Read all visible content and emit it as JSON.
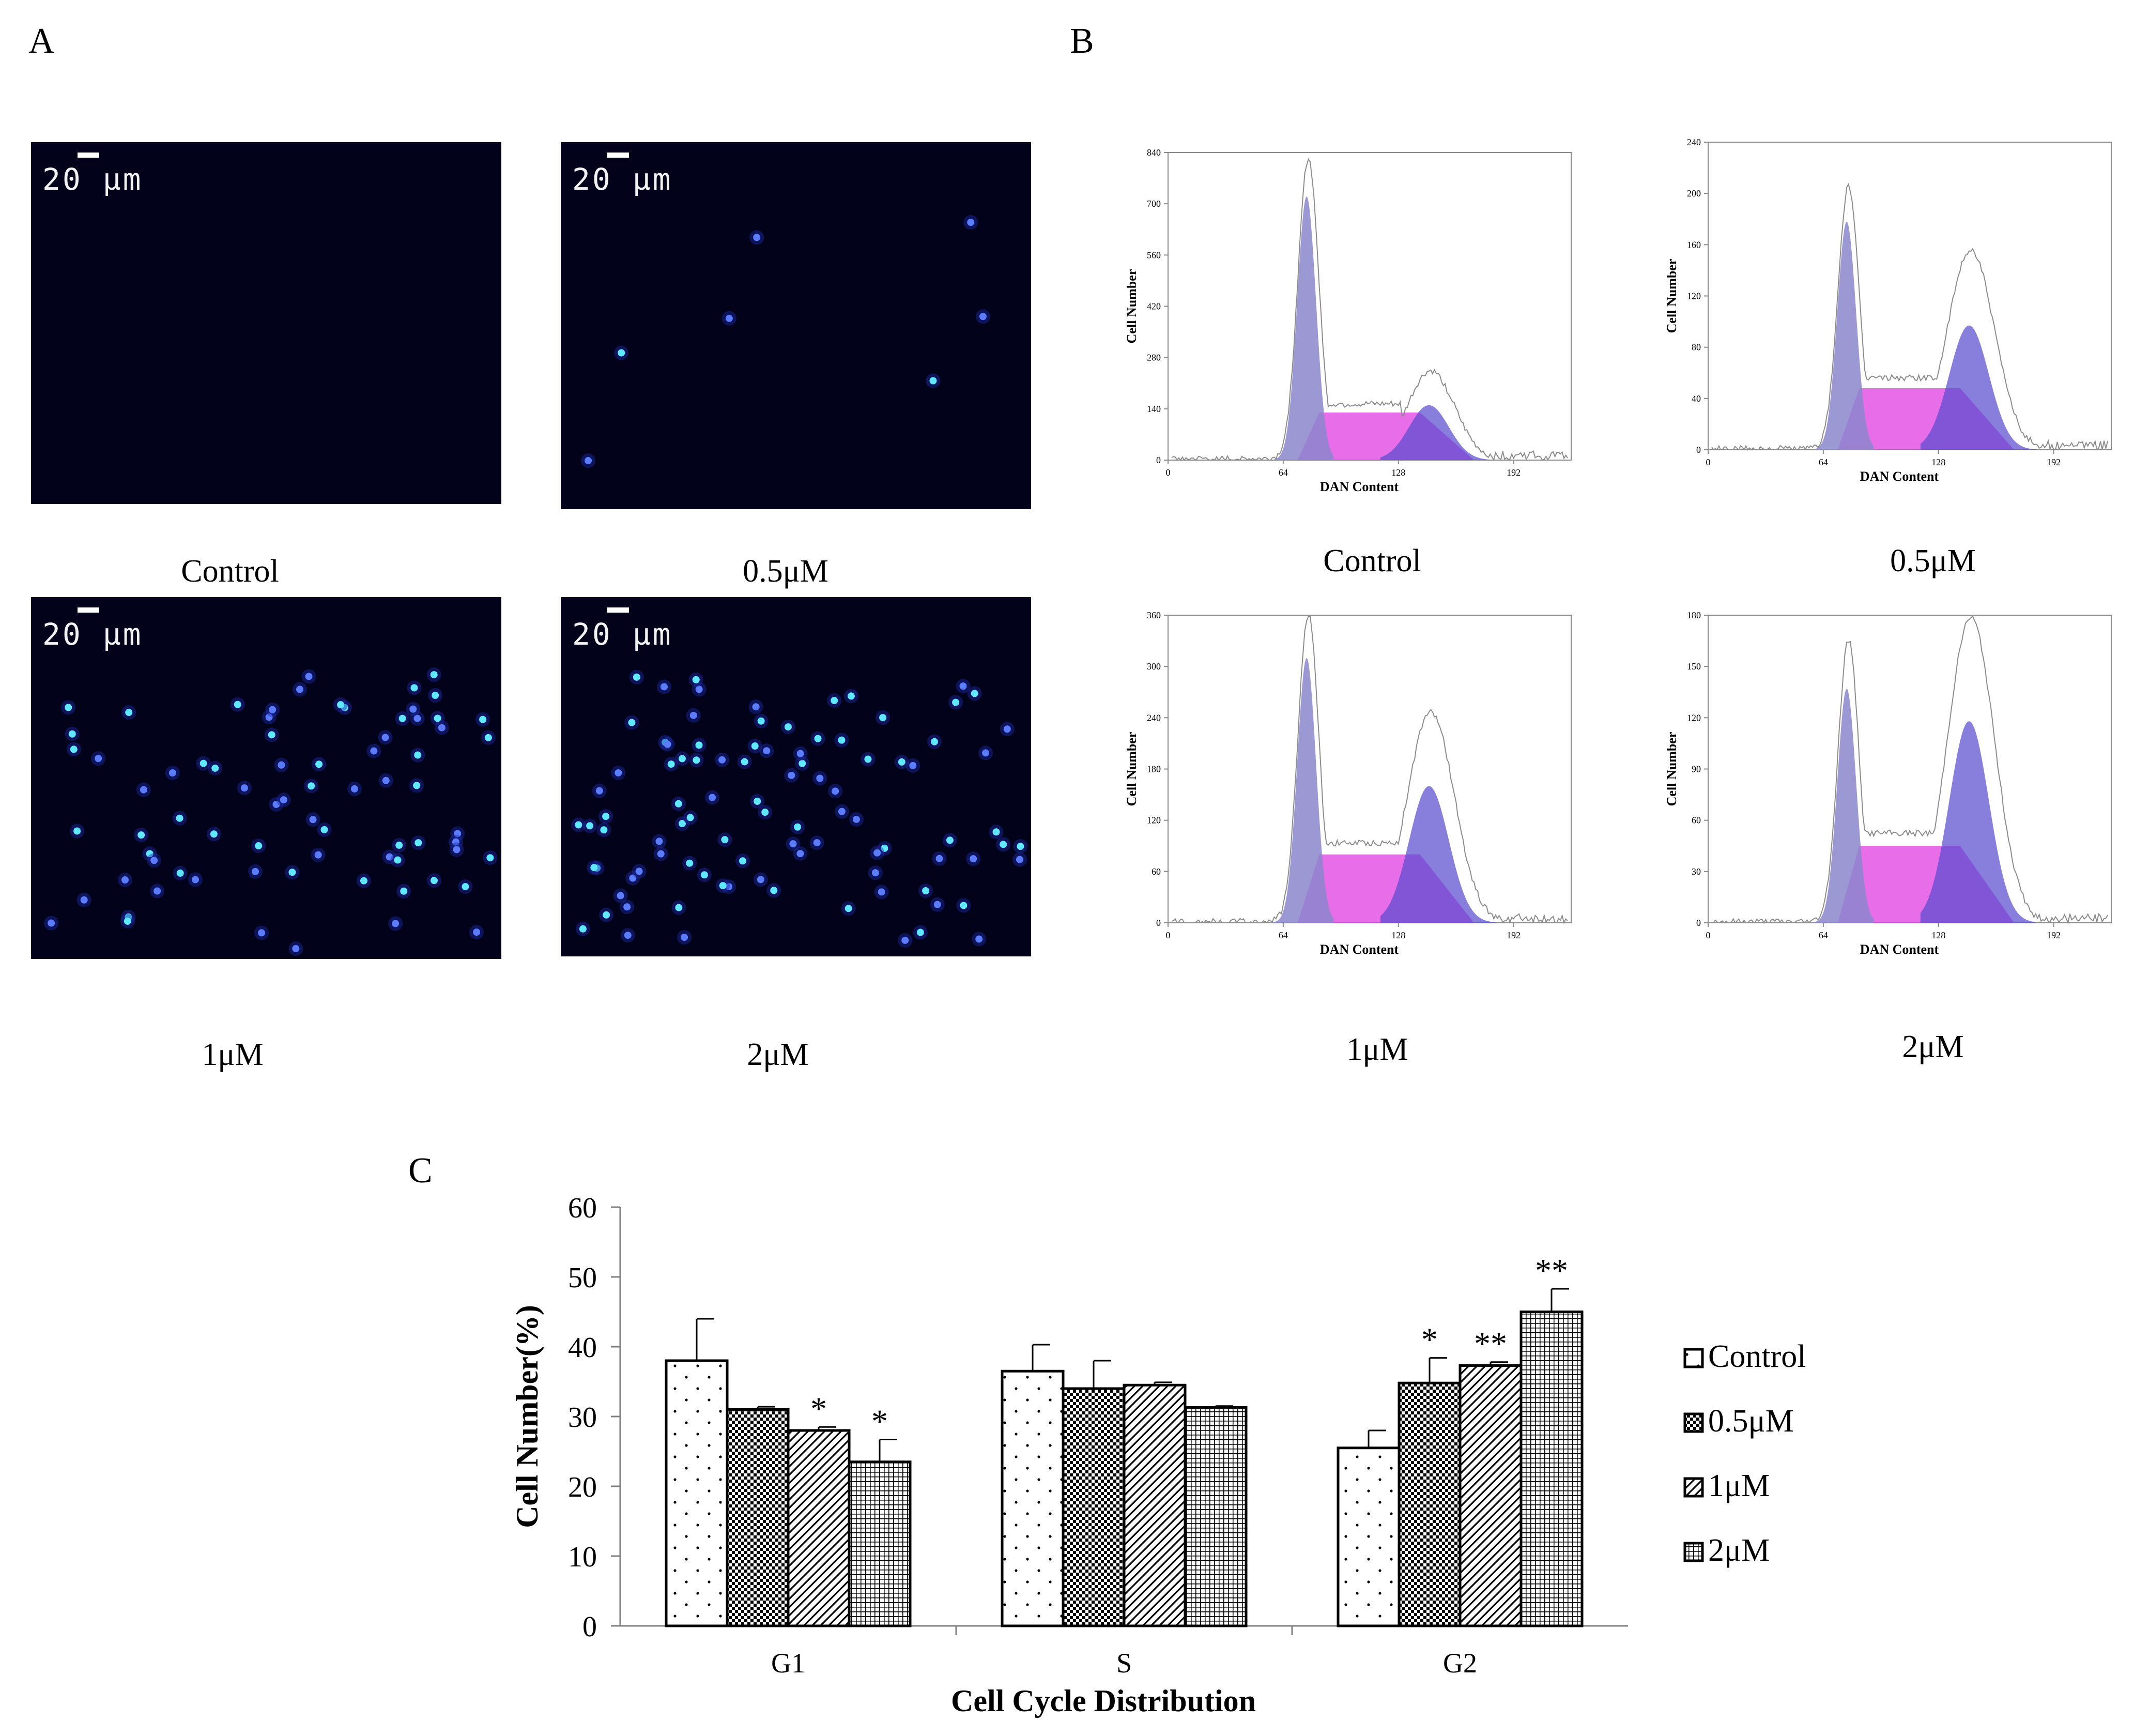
{
  "panels": {
    "a": {
      "letter": "A",
      "images": [
        {
          "caption": "Control",
          "scale_label": "20 μm",
          "cell_count": 0
        },
        {
          "caption": "0.5μM",
          "scale_label": "20 μm",
          "cell_count": 7
        },
        {
          "caption": "1μM",
          "scale_label": "20 μm",
          "cell_count": 75
        },
        {
          "caption": "2μM",
          "scale_label": "20 μm",
          "cell_count": 95
        }
      ]
    },
    "b": {
      "letter": "B",
      "histograms": [
        {
          "caption": "Control",
          "ylabel": "Cell Number",
          "xlabel": "DAN Content",
          "yticks": [
            "0",
            "140",
            "280",
            "420",
            "560",
            "700",
            "840"
          ],
          "ymax": 840,
          "xticks": [
            "0",
            "64",
            "128",
            "192"
          ],
          "g1_peak": 720,
          "s_height": 130,
          "g2_peak": 150,
          "raw_g1": 820,
          "raw_g2": 240
        },
        {
          "caption": "0.5μM",
          "ylabel": "Cell Number",
          "xlabel": "DAN Content",
          "yticks": [
            "0",
            "40",
            "80",
            "120",
            "160",
            "200",
            "240"
          ],
          "ymax": 240,
          "xticks": [
            "0",
            "64",
            "128",
            "192"
          ],
          "g1_peak": 178,
          "s_height": 48,
          "g2_peak": 97,
          "raw_g1": 205,
          "raw_g2": 155
        },
        {
          "caption": "1μM",
          "ylabel": "Cell Number",
          "xlabel": "DAN Content",
          "yticks": [
            "0",
            "60",
            "120",
            "180",
            "240",
            "300",
            "360"
          ],
          "ymax": 360,
          "xticks": [
            "0",
            "64",
            "128",
            "192"
          ],
          "g1_peak": 310,
          "s_height": 80,
          "g2_peak": 160,
          "raw_g1": 360,
          "raw_g2": 245
        },
        {
          "caption": "2μM",
          "ylabel": "Cell Number",
          "xlabel": "DAN Content",
          "yticks": [
            "0",
            "30",
            "60",
            "90",
            "120",
            "150",
            "180"
          ],
          "ymax": 180,
          "xticks": [
            "0",
            "64",
            "128",
            "192"
          ],
          "g1_peak": 137,
          "s_height": 45,
          "g2_peak": 118,
          "raw_g1": 165,
          "raw_g2": 178
        }
      ]
    },
    "c": {
      "letter": "C"
    }
  },
  "chart_data": {
    "type": "bar",
    "title": "",
    "xlabel": "Cell Cycle Distribution",
    "ylabel": "Cell Number(%)",
    "categories": [
      "G1",
      "S",
      "G2"
    ],
    "ylim": [
      0,
      60
    ],
    "yticks": [
      "0",
      "10",
      "20",
      "30",
      "40",
      "50",
      "60"
    ],
    "legend_position": "right",
    "series": [
      {
        "name": "Control",
        "pattern": "dots",
        "values": [
          38,
          36.5,
          25.5
        ],
        "errors": [
          6,
          3.8,
          2.5
        ],
        "marks": [
          "",
          "",
          ""
        ]
      },
      {
        "name": "0.5μM",
        "pattern": "check",
        "values": [
          31,
          34,
          34.8
        ],
        "errors": [
          0.4,
          4,
          3.6
        ],
        "marks": [
          "",
          "",
          "*"
        ]
      },
      {
        "name": "1μM",
        "pattern": "diag",
        "values": [
          28,
          34.5,
          37.3
        ],
        "errors": [
          0.5,
          0.4,
          0.5
        ],
        "marks": [
          "*",
          "",
          "**"
        ]
      },
      {
        "name": "2μM",
        "pattern": "grid",
        "values": [
          23.5,
          31.3,
          45
        ],
        "errors": [
          3.2,
          0.2,
          3.3
        ],
        "marks": [
          "*",
          "",
          "**"
        ]
      }
    ]
  }
}
